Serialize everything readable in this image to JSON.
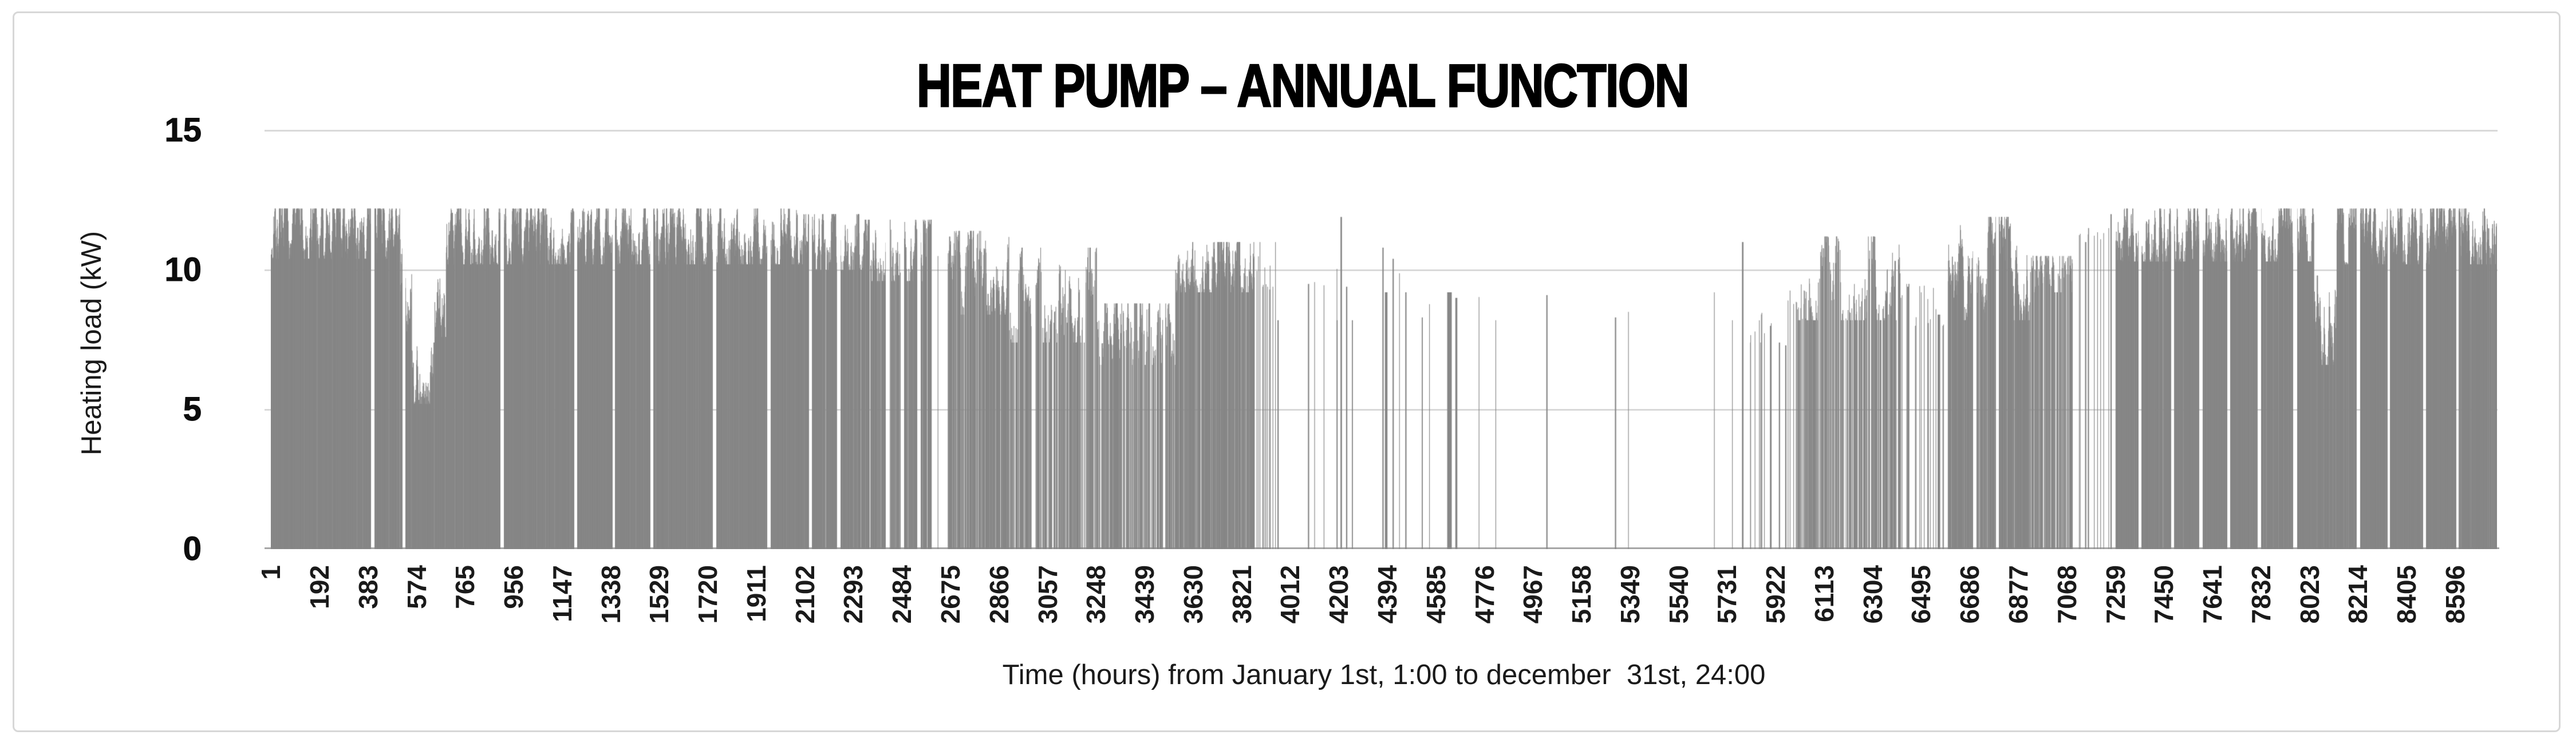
{
  "colors": {
    "bar": "#868686",
    "gridline": "#d9d9d9",
    "axis_line": "#a6a6a6",
    "frame_border": "#d7d7d7",
    "title_text": "#000000",
    "tick_text": "#1a1a1a",
    "background": "#ffffff"
  },
  "chart_data": {
    "type": "bar",
    "title": "HEAT PUMP – ANNUAL FUNCTION",
    "ylabel": "Heating load (kW)",
    "xlabel": "Time (hours) from January 1st, 1:00 to december  31st, 24:00",
    "ylim": [
      0,
      15
    ],
    "yticks": [
      0,
      5,
      10,
      15
    ],
    "grid": "horizontal",
    "legend": "none",
    "x_total_hours": 8760,
    "xticks": [
      1,
      192,
      383,
      574,
      765,
      956,
      1147,
      1338,
      1529,
      1720,
      1911,
      2102,
      2293,
      2484,
      2675,
      2866,
      3057,
      3248,
      3439,
      3630,
      3821,
      4012,
      4203,
      4394,
      4585,
      4776,
      4967,
      5158,
      5349,
      5540,
      5731,
      5922,
      6113,
      6304,
      6495,
      6686,
      6877,
      7068,
      7259,
      7450,
      7641,
      7832,
      8023,
      8214,
      8405,
      8596
    ],
    "max_load_kw": 12.2,
    "seed": 7,
    "segment_format": [
      "from_hour",
      "to_hour",
      "density",
      "kw_min",
      "kw_max"
    ],
    "segments": [
      [
        1,
        510,
        0.97,
        10.4,
        12.2
      ],
      [
        510,
        555,
        0.92,
        7.8,
        10.8
      ],
      [
        555,
        645,
        0.88,
        5.2,
        7.4
      ],
      [
        645,
        690,
        0.92,
        7.6,
        10.6
      ],
      [
        690,
        2095,
        0.965,
        10.2,
        12.2
      ],
      [
        2095,
        2330,
        0.9,
        10.0,
        12.0
      ],
      [
        2330,
        2600,
        0.78,
        9.6,
        11.8
      ],
      [
        2600,
        2665,
        0.02,
        9.5,
        10.5
      ],
      [
        2665,
        2905,
        0.72,
        8.4,
        11.4
      ],
      [
        2905,
        3250,
        0.5,
        7.4,
        10.8
      ],
      [
        3250,
        3560,
        0.52,
        6.6,
        8.8
      ],
      [
        3560,
        3870,
        0.75,
        9.2,
        11.0
      ],
      [
        3870,
        3965,
        0.12,
        9.4,
        11.0
      ],
      [
        3965,
        4705,
        0.008,
        8.2,
        11.6
      ],
      [
        4705,
        5775,
        0.004,
        8.2,
        9.2
      ],
      [
        5775,
        6000,
        0.1,
        7.4,
        11.0
      ],
      [
        6000,
        6415,
        0.5,
        8.2,
        11.2
      ],
      [
        6415,
        6600,
        0.08,
        8.0,
        9.5
      ],
      [
        6600,
        6935,
        0.82,
        8.2,
        11.9
      ],
      [
        6935,
        7090,
        0.5,
        9.2,
        10.5
      ],
      [
        7090,
        7260,
        0.04,
        10.5,
        11.5
      ],
      [
        7260,
        8040,
        0.95,
        10.3,
        12.2
      ],
      [
        8040,
        8130,
        0.9,
        6.6,
        9.8
      ],
      [
        8130,
        8760,
        0.95,
        10.2,
        12.2
      ]
    ],
    "spike_format": [
      "hour",
      "kw",
      "duration_hours"
    ],
    "spikes": [
      [
        3930,
        9.3,
        5
      ],
      [
        3962,
        8.2,
        5
      ],
      [
        4082,
        9.5,
        5
      ],
      [
        4195,
        8.2,
        4
      ],
      [
        4210,
        11.9,
        6
      ],
      [
        4232,
        9.4,
        5
      ],
      [
        4255,
        8.2,
        4
      ],
      [
        4375,
        10.8,
        5
      ],
      [
        4385,
        9.2,
        10
      ],
      [
        4415,
        10.4,
        5
      ],
      [
        4465,
        9.2,
        5
      ],
      [
        4530,
        8.3,
        4
      ],
      [
        4630,
        9.2,
        18
      ],
      [
        4662,
        9.0,
        8
      ],
      [
        5020,
        9.1,
        5
      ],
      [
        5290,
        8.3,
        5
      ],
      [
        5790,
        11.0,
        6
      ],
      [
        5900,
        8.0,
        5
      ],
      [
        5935,
        7.4,
        5
      ],
      [
        5960,
        7.3,
        5
      ],
      [
        6440,
        9.4,
        5
      ],
      [
        6520,
        8.1,
        5
      ],
      [
        6560,
        8.4,
        10
      ],
      [
        7140,
        11.0,
        5
      ],
      [
        7240,
        12.0,
        5
      ]
    ],
    "gap_format": [
      "start_hour",
      "duration_hours"
    ],
    "gaps": [
      [
        395,
        14
      ],
      [
        520,
        10
      ],
      [
        905,
        14
      ],
      [
        1195,
        12
      ],
      [
        1345,
        10
      ],
      [
        1495,
        12
      ],
      [
        1740,
        14
      ],
      [
        1955,
        12
      ],
      [
        2120,
        10
      ],
      [
        2230,
        12
      ],
      [
        2420,
        16
      ],
      [
        2480,
        12
      ],
      [
        2545,
        14
      ],
      [
        6700,
        12
      ],
      [
        6790,
        10
      ],
      [
        7350,
        12
      ],
      [
        7480,
        10
      ],
      [
        7590,
        12
      ],
      [
        7700,
        10
      ],
      [
        7820,
        12
      ],
      [
        7960,
        14
      ],
      [
        8210,
        12
      ],
      [
        8330,
        10
      ],
      [
        8470,
        12
      ],
      [
        8600,
        10
      ]
    ]
  }
}
